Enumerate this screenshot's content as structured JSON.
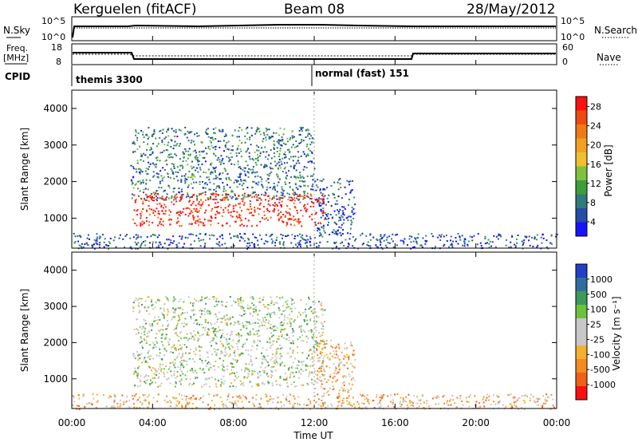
{
  "header": {
    "station": "Kerguelen (fitACF)",
    "beam": "Beam 08",
    "date": "28/May/2012"
  },
  "nsky_panel": {
    "left_label": "N.Sky",
    "left_ticks": [
      "10^5",
      "10^0"
    ],
    "right_ticks": [
      "10^5",
      "10^0"
    ],
    "right_label": "N.Search"
  },
  "freq_panel": {
    "left_label_1": "Freq.",
    "left_label_2": "[MHz]",
    "left_ticks": [
      "18",
      "8"
    ],
    "right_ticks": [
      "60",
      "0"
    ],
    "right_label": "Nave"
  },
  "cpid": {
    "label": "CPID",
    "segments": [
      {
        "name": "themis 3300",
        "start_hour": 0
      },
      {
        "name": "normal (fast) 151",
        "start_hour": 12
      }
    ]
  },
  "time_axis": {
    "label": "Time UT",
    "ticks": [
      "00:00",
      "04:00",
      "08:00",
      "12:00",
      "16:00",
      "20:00",
      "00:00"
    ]
  },
  "chart_data": [
    {
      "type": "heatmap",
      "panel": "power",
      "ylabel": "Slant Range [km]",
      "yticks": [
        "1000",
        "2000",
        "3000",
        "4000"
      ],
      "ylim": [
        180,
        4500
      ],
      "xlim_hours": [
        0,
        24
      ],
      "colorbar": {
        "label": "Power [dB]",
        "ticks": [
          "4",
          "8",
          "12",
          "16",
          "20",
          "24",
          "28"
        ],
        "colors": [
          "#1414ff",
          "#234da6",
          "#2f7a7a",
          "#3b9e3b",
          "#7fc23f",
          "#f0c030",
          "#f3a020",
          "#f07a14",
          "#f04a10",
          "#ff1010"
        ]
      },
      "regions": [
        {
          "h0": 2.9,
          "h1": 12.0,
          "r0": 1500,
          "r1": 3500,
          "level": 2
        },
        {
          "h0": 3.0,
          "h1": 12.5,
          "r0": 800,
          "r1": 1700,
          "level": 9
        },
        {
          "h0": 12.0,
          "h1": 14.0,
          "r0": 600,
          "r1": 2100,
          "level": 1
        },
        {
          "h0": 0.0,
          "h1": 24.0,
          "r0": 180,
          "r1": 600,
          "level": 1
        }
      ]
    },
    {
      "type": "heatmap",
      "panel": "velocity",
      "ylabel": "Slant Range [km]",
      "yticks": [
        "1000",
        "2000",
        "3000",
        "4000"
      ],
      "ylim": [
        180,
        4500
      ],
      "xlim_hours": [
        0,
        24
      ],
      "colorbar": {
        "label": "Velocity [m s⁻¹]",
        "ticks": [
          "1000",
          "500",
          "100",
          "25",
          "-25",
          "-100",
          "-500",
          "-1000"
        ],
        "colors": [
          "#2040c8",
          "#2f6f9f",
          "#3c9a5c",
          "#6cc23c",
          "#c8c8c8",
          "#c8c8c8",
          "#f5b030",
          "#f58a20",
          "#f06018",
          "#ff1010"
        ]
      },
      "regions": [
        {
          "h0": 3.0,
          "h1": 12.5,
          "r0": 800,
          "r1": 3300,
          "level": 4
        },
        {
          "h0": 12.0,
          "h1": 14.0,
          "r0": 600,
          "r1": 2100,
          "level": 6
        },
        {
          "h0": 0.0,
          "h1": 24.0,
          "r0": 180,
          "r1": 600,
          "level": 6
        }
      ]
    }
  ]
}
